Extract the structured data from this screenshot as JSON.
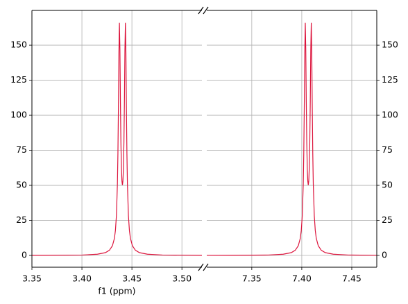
{
  "chart_data": [
    {
      "type": "line",
      "xlabel": "f1 (ppm)",
      "y_axis_side": "left",
      "grid": true,
      "xlim": [
        3.35,
        3.52
      ],
      "ylim": [
        -8.4,
        174.8
      ],
      "xticks": [
        {
          "value": 3.35,
          "label": "3.35"
        },
        {
          "value": 3.4,
          "label": "3.40"
        },
        {
          "value": 3.45,
          "label": "3.45"
        },
        {
          "value": 3.5,
          "label": "3.50"
        }
      ],
      "yticks": [
        0,
        25,
        50,
        75,
        100,
        125,
        150
      ],
      "series": [
        {
          "color": "#dc143c",
          "x": [
            3.35,
            3.3605,
            3.4005,
            3.4155,
            3.4235,
            3.4275,
            3.4305,
            3.4325,
            3.4335,
            3.4345,
            3.4355,
            3.436,
            3.4365,
            3.437,
            3.4375,
            3.438,
            3.4385,
            3.439,
            3.4395,
            3.44,
            3.4405,
            3.441,
            3.4415,
            3.442,
            3.4425,
            3.443,
            3.4435,
            3.444,
            3.4445,
            3.445,
            3.4455,
            3.4465,
            3.4475,
            3.4485,
            3.4505,
            3.4535,
            3.4575,
            3.4655,
            3.4805,
            3.52
          ],
          "values": [
            0.06,
            0.08,
            0.3,
            0.9,
            2.0,
            3.7,
            6.9,
            12.2,
            17.8,
            28.4,
            51.3,
            72.8,
            105.1,
            144.5,
            166.0,
            146.8,
            109.9,
            80.4,
            62.4,
            53.1,
            50.2,
            53.1,
            62.4,
            80.4,
            109.9,
            146.8,
            166.0,
            144.5,
            105.1,
            72.8,
            51.3,
            28.4,
            17.8,
            12.2,
            6.9,
            3.7,
            2.0,
            0.9,
            0.3,
            0.08
          ]
        }
      ]
    },
    {
      "type": "line",
      "y_axis_side": "right",
      "grid": true,
      "xlim": [
        7.305,
        7.475
      ],
      "ylim": [
        -8.4,
        174.8
      ],
      "xticks": [
        {
          "value": 7.35,
          "label": "7.35"
        },
        {
          "value": 7.4,
          "label": "7.40"
        },
        {
          "value": 7.45,
          "label": "7.45"
        }
      ],
      "yticks": [
        0,
        25,
        50,
        75,
        100,
        125,
        150
      ],
      "series": [
        {
          "color": "#dc143c",
          "x": [
            7.305,
            7.3265,
            7.3665,
            7.3815,
            7.3895,
            7.3935,
            7.3965,
            7.3985,
            7.3995,
            7.4005,
            7.4015,
            7.402,
            7.4025,
            7.403,
            7.4035,
            7.404,
            7.4045,
            7.405,
            7.4055,
            7.406,
            7.4065,
            7.407,
            7.4075,
            7.408,
            7.4085,
            7.409,
            7.4095,
            7.41,
            7.4105,
            7.411,
            7.4115,
            7.4125,
            7.4135,
            7.4145,
            7.4165,
            7.4195,
            7.4235,
            7.4315,
            7.4465,
            7.475
          ],
          "values": [
            0.05,
            0.08,
            0.3,
            0.9,
            2.0,
            3.7,
            6.9,
            12.2,
            17.8,
            28.4,
            51.3,
            72.8,
            105.1,
            144.5,
            166.0,
            146.8,
            109.9,
            80.4,
            62.4,
            53.1,
            50.2,
            53.1,
            62.4,
            80.4,
            109.9,
            146.8,
            166.0,
            144.5,
            105.1,
            72.8,
            51.3,
            28.4,
            17.8,
            12.2,
            6.9,
            3.7,
            2.0,
            0.9,
            0.3,
            0.11
          ]
        }
      ]
    }
  ]
}
